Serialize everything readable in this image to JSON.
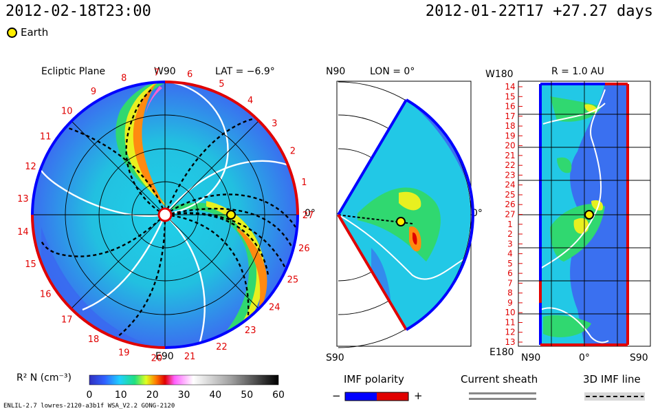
{
  "header": {
    "left_date": "2012-02-18T23:00",
    "right_date": "2012-01-22T17 +27.27 days"
  },
  "legend": {
    "earth_label": "Earth"
  },
  "ecliptic": {
    "title": "Ecliptic Plane",
    "top_label": "W90",
    "lat_label": "LAT = −6.9°",
    "bottom_label": "E90",
    "right_label": "0°",
    "carrington_ticks": [
      "1",
      "2",
      "3",
      "4",
      "5",
      "6",
      "7",
      "8",
      "9",
      "10",
      "11",
      "12",
      "13",
      "14",
      "15",
      "16",
      "17",
      "18",
      "19",
      "20",
      "21",
      "22",
      "23",
      "24",
      "25",
      "26",
      "27"
    ]
  },
  "meridional": {
    "top_label": "N90",
    "lon_label": "LON = 0°",
    "bottom_label": "S90",
    "right_label": "0°"
  },
  "radial": {
    "top_label": "W180",
    "r_label": "R = 1.0 AU",
    "bottom_left": "E180",
    "bottom_n": "N90",
    "bottom_zero": "0°",
    "bottom_s": "S90",
    "left_ticks": [
      "14",
      "15",
      "16",
      "17",
      "18",
      "19",
      "20",
      "21",
      "22",
      "23",
      "24",
      "25",
      "26",
      "27",
      "1",
      "2",
      "3",
      "4",
      "5",
      "6",
      "7",
      "8",
      "9",
      "10",
      "11",
      "12",
      "13"
    ]
  },
  "colorbar": {
    "label": "R² N (cm⁻³)",
    "ticks": [
      "0",
      "10",
      "20",
      "30",
      "40",
      "50",
      "60"
    ]
  },
  "imf_polarity": {
    "title": "IMF polarity",
    "minus": "−",
    "plus": "+"
  },
  "current_sheath": {
    "title": "Current sheath"
  },
  "imf_line": {
    "title": "3D IMF line"
  },
  "footer": "ENLIL-2.7 lowres-2120-a3b1f WSA_V2.2 GONG-2120",
  "colors": {
    "red": "#e00000",
    "blue": "#0000ff",
    "earth": "#ffee00"
  }
}
